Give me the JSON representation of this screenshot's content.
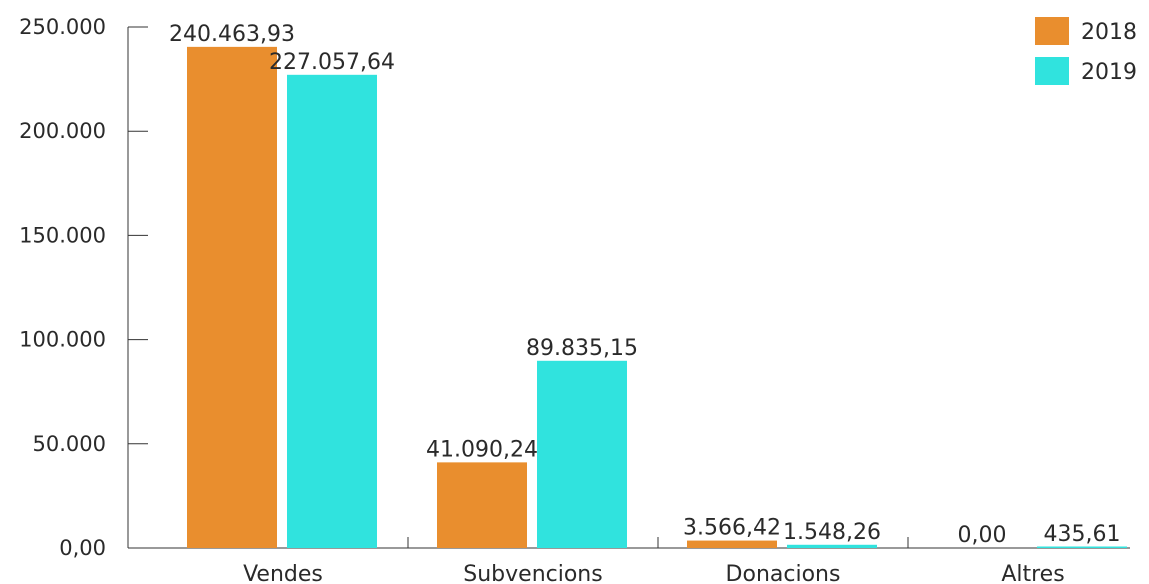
{
  "chart_data": {
    "type": "bar",
    "categories": [
      "Vendes",
      "Subvencions",
      "Donacions",
      "Altres"
    ],
    "series": [
      {
        "name": "2018",
        "color": "#E98E2E",
        "values": [
          240463.93,
          41090.24,
          3566.42,
          0.0
        ],
        "labels": [
          "240.463,93",
          "41.090,24",
          "3.566,42",
          "0,00"
        ]
      },
      {
        "name": "2019",
        "color": "#30E3DE",
        "values": [
          227057.64,
          89835.15,
          1548.26,
          435.61
        ],
        "labels": [
          "227.057,64",
          "89.835,15",
          "1.548,26",
          "435,61"
        ]
      }
    ],
    "ylim": [
      0,
      250000
    ],
    "yticks": [
      {
        "value": 0,
        "label": "0,00"
      },
      {
        "value": 50000,
        "label": "50.000"
      },
      {
        "value": 100000,
        "label": "100.000"
      },
      {
        "value": 150000,
        "label": "150.000"
      },
      {
        "value": 200000,
        "label": "200.000"
      },
      {
        "value": 250000,
        "label": "250.000"
      }
    ],
    "grid": false,
    "legend_position": "top-right",
    "title": "",
    "xlabel": "",
    "ylabel": ""
  }
}
